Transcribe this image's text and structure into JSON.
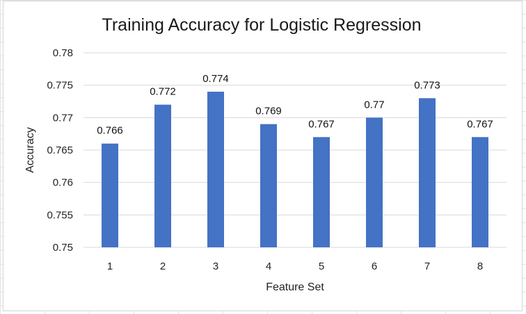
{
  "chart_data": {
    "type": "bar",
    "title": "Training Accuracy for Logistic Regression",
    "xlabel": "Feature Set",
    "ylabel": "Accuracy",
    "categories": [
      "1",
      "2",
      "3",
      "4",
      "5",
      "6",
      "7",
      "8"
    ],
    "values": [
      0.766,
      0.772,
      0.774,
      0.769,
      0.767,
      0.77,
      0.773,
      0.767
    ],
    "data_labels": [
      "0.766",
      "0.772",
      "0.774",
      "0.769",
      "0.767",
      "0.77",
      "0.773",
      "0.767"
    ],
    "ylim": [
      0.75,
      0.78
    ],
    "yticks": [
      0.75,
      0.755,
      0.76,
      0.765,
      0.77,
      0.775,
      0.78
    ],
    "ytick_labels": [
      "0.75",
      "0.755",
      "0.76",
      "0.765",
      "0.77",
      "0.775",
      "0.78"
    ],
    "grid": true,
    "legend": "none",
    "bar_color": "#4472c4",
    "grid_color": "#d9d9d9"
  }
}
